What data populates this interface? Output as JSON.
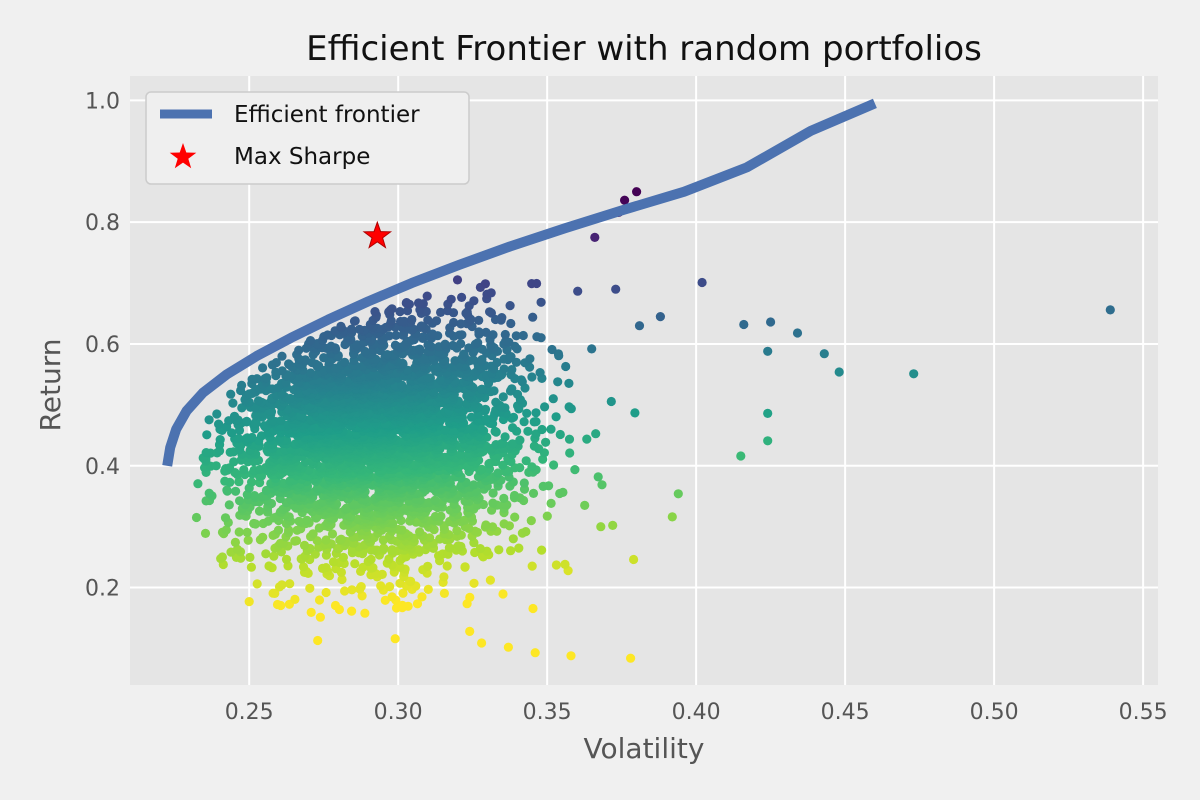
{
  "chart_data": {
    "type": "scatter",
    "title": "Efficient Frontier with random portfolios",
    "xlabel": "Volatility",
    "ylabel": "Return",
    "xlim": [
      0.21,
      0.555
    ],
    "ylim": [
      0.04,
      1.04
    ],
    "xticks": [
      {
        "value": 0.25,
        "label": "0.25"
      },
      {
        "value": 0.3,
        "label": "0.30"
      },
      {
        "value": 0.35,
        "label": "0.35"
      },
      {
        "value": 0.4,
        "label": "0.40"
      },
      {
        "value": 0.45,
        "label": "0.45"
      },
      {
        "value": 0.5,
        "label": "0.50"
      },
      {
        "value": 0.55,
        "label": "0.55"
      }
    ],
    "yticks": [
      {
        "value": 0.2,
        "label": "0.2"
      },
      {
        "value": 0.4,
        "label": "0.4"
      },
      {
        "value": 0.6,
        "label": "0.6"
      },
      {
        "value": 0.8,
        "label": "0.8"
      },
      {
        "value": 1.0,
        "label": "1.0"
      }
    ],
    "grid": true,
    "legend_position": "top-left",
    "colormap": "viridis",
    "series": [
      {
        "name": "Efficient frontier",
        "kind": "line",
        "color": "#4c72b0",
        "x": [
          0.2225,
          0.2235,
          0.2255,
          0.229,
          0.2345,
          0.2425,
          0.2525,
          0.264,
          0.2765,
          0.29,
          0.3045,
          0.3205,
          0.3375,
          0.356,
          0.3755,
          0.396,
          0.417,
          0.4385,
          0.46
        ],
        "y": [
          0.4,
          0.43,
          0.46,
          0.49,
          0.52,
          0.55,
          0.58,
          0.61,
          0.64,
          0.67,
          0.7,
          0.73,
          0.76,
          0.79,
          0.82,
          0.85,
          0.89,
          0.95,
          0.995
        ]
      },
      {
        "name": "Max Sharpe",
        "kind": "marker",
        "marker": "star",
        "color": "#ff0000",
        "x": [
          0.293
        ],
        "y": [
          0.777
        ]
      }
    ],
    "outlier_points": [
      {
        "x": 0.539,
        "y": 0.656
      },
      {
        "x": 0.473,
        "y": 0.551
      },
      {
        "x": 0.448,
        "y": 0.554
      },
      {
        "x": 0.443,
        "y": 0.584
      },
      {
        "x": 0.434,
        "y": 0.618
      },
      {
        "x": 0.425,
        "y": 0.636
      },
      {
        "x": 0.424,
        "y": 0.588
      },
      {
        "x": 0.416,
        "y": 0.632
      },
      {
        "x": 0.424,
        "y": 0.486
      },
      {
        "x": 0.424,
        "y": 0.441
      },
      {
        "x": 0.415,
        "y": 0.416
      },
      {
        "x": 0.402,
        "y": 0.701
      },
      {
        "x": 0.38,
        "y": 0.85
      },
      {
        "x": 0.376,
        "y": 0.836
      },
      {
        "x": 0.374,
        "y": 0.816
      },
      {
        "x": 0.373,
        "y": 0.69
      },
      {
        "x": 0.366,
        "y": 0.775
      },
      {
        "x": 0.388,
        "y": 0.645
      },
      {
        "x": 0.381,
        "y": 0.63
      },
      {
        "x": 0.392,
        "y": 0.316
      },
      {
        "x": 0.394,
        "y": 0.354
      },
      {
        "x": 0.379,
        "y": 0.246
      },
      {
        "x": 0.378,
        "y": 0.084
      },
      {
        "x": 0.358,
        "y": 0.088
      },
      {
        "x": 0.346,
        "y": 0.093
      },
      {
        "x": 0.337,
        "y": 0.102
      },
      {
        "x": 0.328,
        "y": 0.109
      },
      {
        "x": 0.299,
        "y": 0.116
      },
      {
        "x": 0.273,
        "y": 0.113
      },
      {
        "x": 0.356,
        "y": 0.238
      },
      {
        "x": 0.25,
        "y": 0.177
      },
      {
        "x": 0.324,
        "y": 0.128
      },
      {
        "x": 0.372,
        "y": 0.302
      },
      {
        "x": 0.368,
        "y": 0.3
      }
    ]
  }
}
